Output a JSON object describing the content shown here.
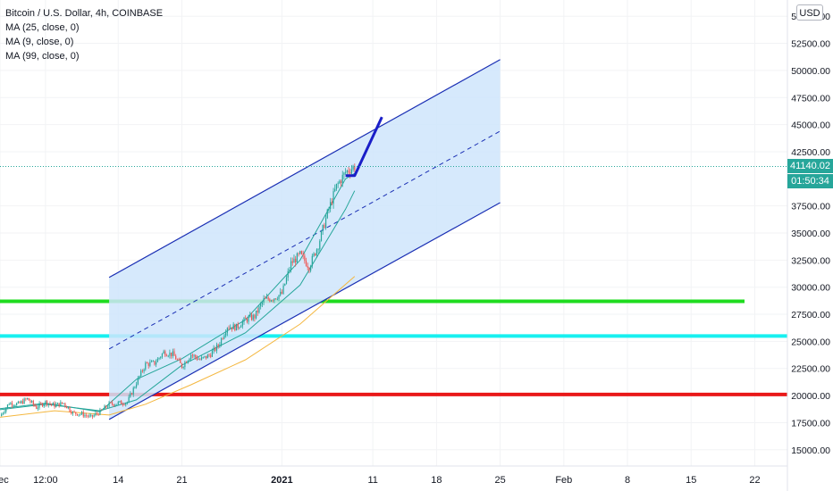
{
  "legend": {
    "title": "Bitcoin / U.S. Dollar, 4h, COINBASE",
    "ma1": "MA (25, close, 0)",
    "ma2": "MA (9, close, 0)",
    "ma3": "MA (99, close, 0)"
  },
  "currency_button": "USD",
  "price_label": "41140.02",
  "countdown_label": "01:50:34",
  "colors": {
    "channel_line": "#1a2fb4",
    "channel_fill": "#cfe5fb",
    "green_level": "#1fdc1f",
    "cyan_level": "#18f0f0",
    "red_level": "#e91919",
    "ma_fast": "#26a69a",
    "ma_slow": "#f4b73f",
    "price_tag": "#26a69a",
    "projection": "#1a1ec8"
  },
  "chart_data": {
    "type": "candlestick",
    "symbol": "Bitcoin / U.S. Dollar",
    "interval": "4h",
    "exchange": "COINBASE",
    "y_axis": {
      "ticks": [
        "55000.00",
        "52500.00",
        "50000.00",
        "47500.00",
        "45000.00",
        "42500.00",
        "37500.00",
        "35000.00",
        "32500.00",
        "30000.00",
        "27500.00",
        "25000.00",
        "22500.00",
        "20000.00",
        "17500.00",
        "15000.00"
      ],
      "range": [
        13500,
        56500
      ]
    },
    "x_axis": {
      "ticks": [
        "Dec",
        "12:00",
        "14",
        "21",
        "2021",
        "11",
        "18",
        "25",
        "Feb",
        "8",
        "15",
        "22"
      ],
      "range": [
        "2020-12-01",
        "2021-02-25"
      ]
    },
    "last_price": 41140.02,
    "horizontal_levels": [
      {
        "price": 28700,
        "color": "green"
      },
      {
        "price": 25500,
        "color": "cyan"
      },
      {
        "price": 20100,
        "color": "red"
      }
    ],
    "parallel_channel": {
      "start": {
        "date": "2020-12-13",
        "price": 17800
      },
      "end": {
        "date": "2021-01-25",
        "price": 37800
      },
      "upper_start_price": 30900,
      "upper_end_price": 51000,
      "middle_start_price": 24300,
      "middle_end_price": 44400
    },
    "projection_path": [
      {
        "date": "2021-01-08",
        "price": 40300
      },
      {
        "date": "2021-01-09",
        "price": 40300
      },
      {
        "date": "2021-01-12",
        "price": 45700
      }
    ],
    "moving_averages": [
      {
        "name": "MA (25, close, 0)",
        "points": [
          {
            "date": "2020-12-01",
            "price": 18700
          },
          {
            "date": "2020-12-06",
            "price": 19200
          },
          {
            "date": "2020-12-12",
            "price": 18600
          },
          {
            "date": "2020-12-16",
            "price": 19600
          },
          {
            "date": "2020-12-21",
            "price": 22800
          },
          {
            "date": "2020-12-28",
            "price": 25800
          },
          {
            "date": "2021-01-03",
            "price": 30200
          },
          {
            "date": "2021-01-06",
            "price": 34400
          },
          {
            "date": "2021-01-08",
            "price": 37200
          },
          {
            "date": "2021-01-09",
            "price": 38900
          }
        ]
      },
      {
        "name": "MA (9, close, 0)",
        "points": [
          {
            "date": "2020-12-01",
            "price": 18800
          },
          {
            "date": "2020-12-06",
            "price": 19300
          },
          {
            "date": "2020-12-12",
            "price": 18500
          },
          {
            "date": "2020-12-16",
            "price": 21500
          },
          {
            "date": "2020-12-21",
            "price": 23400
          },
          {
            "date": "2020-12-28",
            "price": 27000
          },
          {
            "date": "2021-01-03",
            "price": 32500
          },
          {
            "date": "2021-01-06",
            "price": 37000
          },
          {
            "date": "2021-01-08",
            "price": 40000
          },
          {
            "date": "2021-01-09",
            "price": 40500
          }
        ]
      },
      {
        "name": "MA (99, close, 0)",
        "points": [
          {
            "date": "2020-12-01",
            "price": 18000
          },
          {
            "date": "2020-12-07",
            "price": 18600
          },
          {
            "date": "2020-12-13",
            "price": 18200
          },
          {
            "date": "2020-12-17",
            "price": 19200
          },
          {
            "date": "2020-12-22",
            "price": 21000
          },
          {
            "date": "2020-12-28",
            "price": 23300
          },
          {
            "date": "2021-01-03",
            "price": 26600
          },
          {
            "date": "2021-01-06",
            "price": 28800
          },
          {
            "date": "2021-01-09",
            "price": 31000
          }
        ]
      }
    ],
    "price_path": [
      {
        "date": "2020-12-01",
        "price": 18100
      },
      {
        "date": "2020-12-02",
        "price": 19300
      },
      {
        "date": "2020-12-03",
        "price": 19200
      },
      {
        "date": "2020-12-04",
        "price": 19700
      },
      {
        "date": "2020-12-05",
        "price": 18900
      },
      {
        "date": "2020-12-06",
        "price": 19400
      },
      {
        "date": "2020-12-07",
        "price": 19100
      },
      {
        "date": "2020-12-08",
        "price": 19300
      },
      {
        "date": "2020-12-09",
        "price": 18400
      },
      {
        "date": "2020-12-10",
        "price": 18300
      },
      {
        "date": "2020-12-11",
        "price": 18000
      },
      {
        "date": "2020-12-12",
        "price": 18500
      },
      {
        "date": "2020-12-13",
        "price": 19200
      },
      {
        "date": "2020-12-14",
        "price": 19300
      },
      {
        "date": "2020-12-15",
        "price": 19400
      },
      {
        "date": "2020-12-16",
        "price": 21200
      },
      {
        "date": "2020-12-17",
        "price": 22900
      },
      {
        "date": "2020-12-18",
        "price": 23000
      },
      {
        "date": "2020-12-19",
        "price": 24000
      },
      {
        "date": "2020-12-20",
        "price": 23800
      },
      {
        "date": "2020-12-21",
        "price": 22700
      },
      {
        "date": "2020-12-22",
        "price": 23800
      },
      {
        "date": "2020-12-23",
        "price": 23300
      },
      {
        "date": "2020-12-24",
        "price": 23700
      },
      {
        "date": "2020-12-25",
        "price": 24600
      },
      {
        "date": "2020-12-26",
        "price": 26400
      },
      {
        "date": "2020-12-27",
        "price": 26300
      },
      {
        "date": "2020-12-28",
        "price": 27000
      },
      {
        "date": "2020-12-29",
        "price": 27300
      },
      {
        "date": "2020-12-30",
        "price": 28800
      },
      {
        "date": "2020-12-31",
        "price": 29000
      },
      {
        "date": "2021-01-01",
        "price": 29400
      },
      {
        "date": "2021-01-02",
        "price": 32200
      },
      {
        "date": "2021-01-03",
        "price": 33000
      },
      {
        "date": "2021-01-04",
        "price": 31900
      },
      {
        "date": "2021-01-05",
        "price": 33900
      },
      {
        "date": "2021-01-06",
        "price": 36800
      },
      {
        "date": "2021-01-07",
        "price": 39300
      },
      {
        "date": "2021-01-08",
        "price": 40600
      },
      {
        "date": "2021-01-09",
        "price": 41140
      }
    ]
  }
}
